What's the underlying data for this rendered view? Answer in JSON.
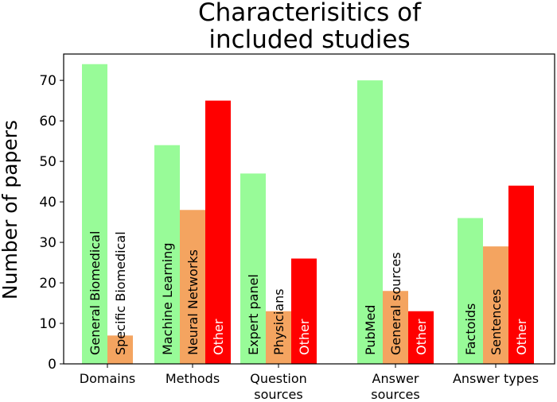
{
  "chart_data": {
    "type": "bar",
    "title": [
      "Characterisitics of",
      "included studies"
    ],
    "ylabel": "Number of papers",
    "xlabel": "",
    "ylim": [
      0,
      76.5
    ],
    "yticks": [
      0,
      10,
      20,
      30,
      40,
      50,
      60,
      70
    ],
    "grid": false,
    "legend": "none",
    "groups": [
      {
        "label": [
          "Domains"
        ],
        "bars": [
          {
            "label": "General Biomedical",
            "value": 74,
            "color": "#98fb98"
          },
          {
            "label": "Specific Biomedical",
            "value": 7,
            "color": "#f4a460"
          }
        ]
      },
      {
        "label": [
          "Methods"
        ],
        "bars": [
          {
            "label": "Machine Learning",
            "value": 54,
            "color": "#98fb98"
          },
          {
            "label": "Neural Networks",
            "value": 38,
            "color": "#f4a460"
          },
          {
            "label": "Other",
            "value": 65,
            "color": "#ff0000",
            "label_color": "#ffffff"
          }
        ]
      },
      {
        "label": [
          "Question",
          "sources"
        ],
        "bars": [
          {
            "label": "Expert panel",
            "value": 47,
            "color": "#98fb98"
          },
          {
            "label": "Physicians",
            "value": 13,
            "color": "#f4a460"
          },
          {
            "label": "Other",
            "value": 26,
            "color": "#ff0000",
            "label_color": "#ffffff"
          }
        ]
      },
      {
        "label": [
          "Answer",
          "sources"
        ],
        "bars": [
          {
            "label": "PubMed",
            "value": 70,
            "color": "#98fb98"
          },
          {
            "label": "General sources",
            "value": 18,
            "color": "#f4a460"
          },
          {
            "label": "Other",
            "value": 13,
            "color": "#ff0000",
            "label_color": "#ffffff"
          }
        ]
      },
      {
        "label": [
          "Answer types"
        ],
        "bars": [
          {
            "label": "Factoids",
            "value": 36,
            "color": "#98fb98"
          },
          {
            "label": "Sentences",
            "value": 29,
            "color": "#f4a460"
          },
          {
            "label": "Other",
            "value": 44,
            "color": "#ff0000",
            "label_color": "#ffffff"
          }
        ]
      }
    ]
  }
}
